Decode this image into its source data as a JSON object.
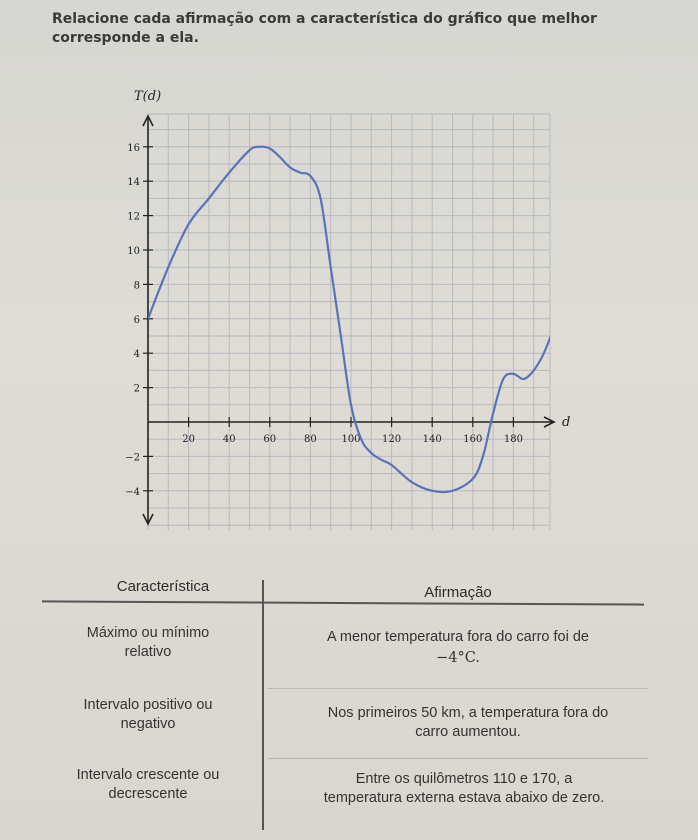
{
  "prompt": "Relacione cada afirmação com a característica do gráfico que melhor corresponde a ela.",
  "chart_data": {
    "type": "line",
    "ylabel": "T(d)",
    "xlabel": "d",
    "xlim": [
      -10,
      195
    ],
    "ylim": [
      -6,
      18
    ],
    "x_ticks": [
      20,
      40,
      60,
      80,
      100,
      120,
      140,
      160,
      180
    ],
    "y_ticks": [
      -4,
      -2,
      2,
      4,
      6,
      8,
      10,
      12,
      14,
      16
    ],
    "grid": true,
    "series": [
      {
        "x": [
          0,
          10,
          20,
          30,
          40,
          50,
          55,
          60,
          65,
          70,
          75,
          80,
          85,
          90,
          95,
          100,
          105,
          110,
          115,
          120,
          130,
          140,
          150,
          160,
          165,
          170,
          175,
          180,
          185,
          190,
          195,
          200
        ],
        "y": [
          6,
          9,
          11.5,
          13,
          14.5,
          15.8,
          16,
          15.9,
          15.4,
          14.8,
          14.5,
          14.3,
          13,
          9,
          5,
          1,
          -1,
          -1.8,
          -2.2,
          -2.5,
          -3.5,
          -4,
          -4,
          -3.3,
          -2,
          0.5,
          2.5,
          2.8,
          2.5,
          3,
          4,
          5.5
        ]
      }
    ]
  },
  "table": {
    "headers": [
      "Característica",
      "Afirmação"
    ],
    "rows": [
      {
        "feature": [
          "Máximo ou mínimo",
          "relativo"
        ],
        "statement": [
          "A menor temperatura fora do carro foi de",
          "−4°C."
        ]
      },
      {
        "feature": [
          "Intervalo positivo ou",
          "negativo"
        ],
        "statement": [
          "Nos primeiros 50 km, a temperatura fora do",
          "carro aumentou."
        ]
      },
      {
        "feature": [
          "Intervalo crescente ou",
          "decrescente"
        ],
        "statement": [
          "Entre os quilômetros 110 e 170, a",
          "temperatura externa estava abaixo de zero."
        ]
      }
    ]
  },
  "colors": {
    "curve": "#5b73b6",
    "grid": "#b9b9bf",
    "axis": "#222222"
  }
}
